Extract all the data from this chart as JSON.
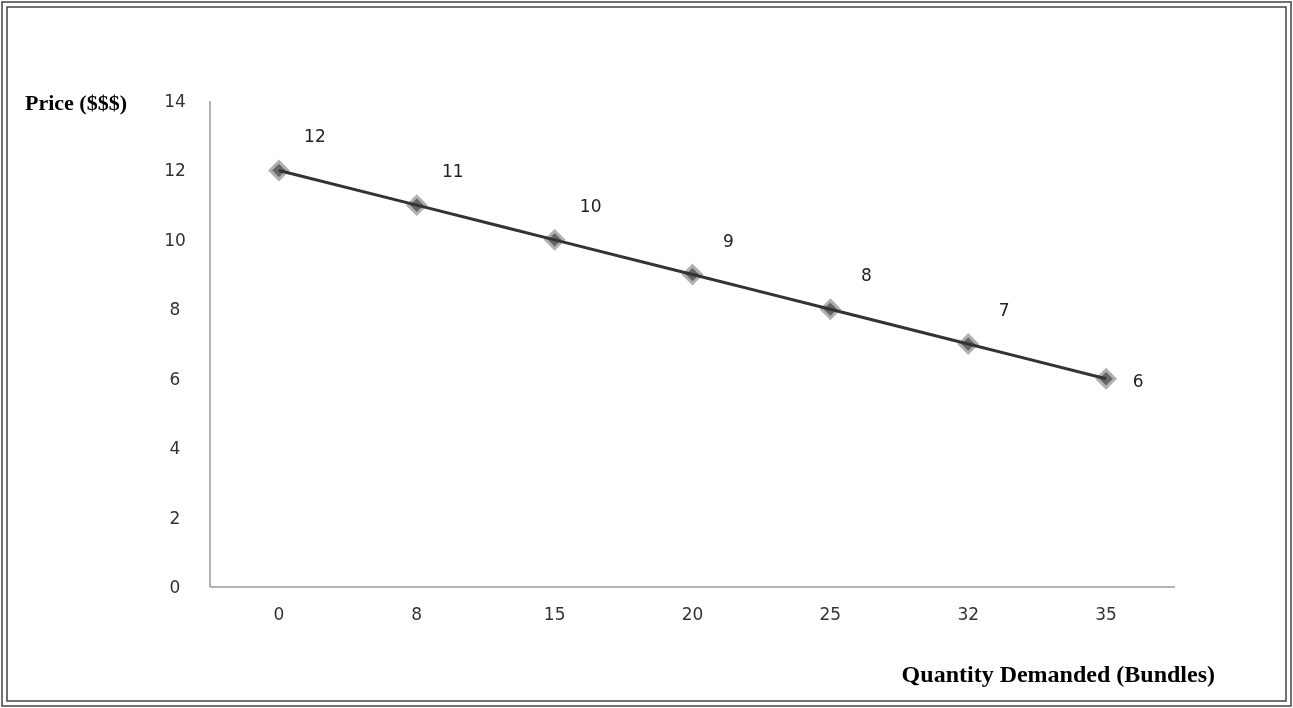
{
  "chart_data": {
    "type": "line",
    "xlabel": "Quantity Demanded (Bundles)",
    "ylabel": "Price ($$$)",
    "categories": [
      "0",
      "8",
      "15",
      "20",
      "25",
      "32",
      "35"
    ],
    "series": [
      {
        "color": "#333333",
        "values": [
          12,
          11,
          10,
          9,
          8,
          7,
          6
        ]
      }
    ],
    "ylim": [
      0,
      14
    ],
    "yticks": [
      0,
      2,
      4,
      6,
      8,
      10,
      12,
      14
    ],
    "grid": false,
    "marker": "diamond",
    "line_style": "solid",
    "data_labels": true
  }
}
